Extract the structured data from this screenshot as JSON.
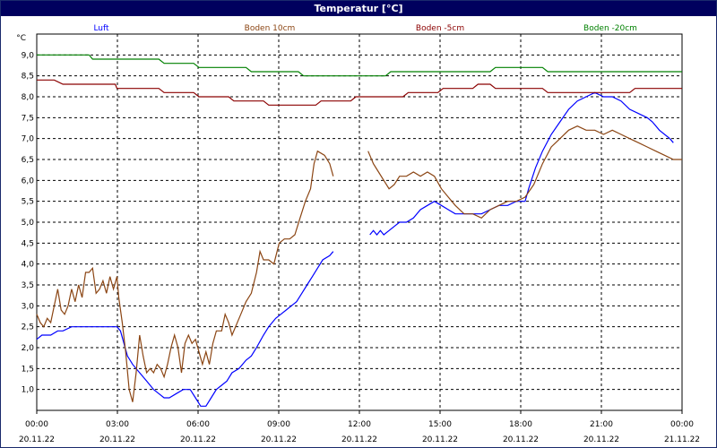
{
  "chart_data": {
    "type": "line",
    "title": "Temperatur [°C]",
    "ylabel": "°C",
    "ylim": [
      0.5,
      9.5
    ],
    "xlim_hours": [
      0,
      24
    ],
    "grid": true,
    "legend_position": "top",
    "y_ticks": [
      "1,0",
      "1,5",
      "2,0",
      "2,5",
      "3,0",
      "3,5",
      "4,0",
      "4,5",
      "5,0",
      "5,5",
      "6,0",
      "6,5",
      "7,0",
      "7,5",
      "8,0",
      "8,5",
      "9,0"
    ],
    "x_ticks": [
      {
        "time": "00:00",
        "date": "20.11.22"
      },
      {
        "time": "03:00",
        "date": "20.11.22"
      },
      {
        "time": "06:00",
        "date": "20.11.22"
      },
      {
        "time": "09:00",
        "date": "20.11.22"
      },
      {
        "time": "12:00",
        "date": "20.11.22"
      },
      {
        "time": "15:00",
        "date": "20.11.22"
      },
      {
        "time": "18:00",
        "date": "20.11.22"
      },
      {
        "time": "21:00",
        "date": "20.11.22"
      },
      {
        "time": "00:00",
        "date": "21.11.22"
      }
    ],
    "series": [
      {
        "name": "Luft",
        "color": "#0000ff",
        "segments": [
          [
            [
              0,
              2.2
            ],
            [
              0.3,
              2.3
            ],
            [
              0.8,
              2.3
            ],
            [
              1.2,
              2.4
            ],
            [
              1.5,
              2.4
            ],
            [
              2,
              2.5
            ],
            [
              3,
              2.5
            ],
            [
              4,
              2.5
            ],
            [
              4.6,
              2.5
            ],
            [
              4.8,
              2.4
            ],
            [
              5.0,
              2.1
            ],
            [
              5.2,
              1.8
            ],
            [
              5.5,
              1.6
            ],
            [
              5.9,
              1.4
            ],
            [
              6.3,
              1.2
            ],
            [
              6.7,
              1.0
            ],
            [
              7.0,
              0.9
            ],
            [
              7.3,
              0.8
            ],
            [
              7.6,
              0.8
            ],
            [
              8.0,
              0.9
            ],
            [
              8.4,
              1.0
            ],
            [
              8.8,
              1.0
            ],
            [
              9.1,
              0.8
            ],
            [
              9.4,
              0.6
            ],
            [
              9.7,
              0.6
            ],
            [
              10.0,
              0.8
            ],
            [
              10.3,
              1.0
            ],
            [
              10.6,
              1.1
            ],
            [
              10.9,
              1.2
            ],
            [
              11.2,
              1.4
            ],
            [
              11.6,
              1.5
            ],
            [
              12.0,
              1.7
            ],
            [
              12.3,
              1.8
            ],
            [
              12.6,
              2.0
            ],
            [
              13.0,
              2.3
            ],
            [
              13.3,
              2.5
            ],
            [
              13.7,
              2.7
            ],
            [
              14.0,
              2.8
            ],
            [
              14.3,
              2.9
            ],
            [
              14.6,
              3.0
            ],
            [
              14.9,
              3.1
            ],
            [
              15.2,
              3.3
            ],
            [
              15.5,
              3.5
            ],
            [
              15.8,
              3.7
            ],
            [
              16.1,
              3.9
            ],
            [
              16.4,
              4.1
            ],
            [
              16.8,
              4.2
            ],
            [
              17.0,
              4.3
            ]
          ],
          [
            [
              19.1,
              4.7
            ],
            [
              19.3,
              4.8
            ],
            [
              19.5,
              4.7
            ],
            [
              19.7,
              4.8
            ],
            [
              19.9,
              4.7
            ],
            [
              20.2,
              4.8
            ],
            [
              20.5,
              4.9
            ],
            [
              20.8,
              5.0
            ],
            [
              21.2,
              5.0
            ],
            [
              21.6,
              5.1
            ],
            [
              22.0,
              5.3
            ],
            [
              22.4,
              5.4
            ],
            [
              22.8,
              5.5
            ],
            [
              23.2,
              5.4
            ],
            [
              23.6,
              5.3
            ],
            [
              24,
              5.2
            ],
            [
              24.5,
              5.2
            ],
            [
              25,
              5.2
            ],
            [
              25.5,
              5.2
            ],
            [
              26,
              5.3
            ],
            [
              26.5,
              5.4
            ],
            [
              27,
              5.4
            ],
            [
              27.5,
              5.5
            ],
            [
              28,
              5.5
            ],
            [
              28.2,
              5.8
            ],
            [
              28.6,
              6.3
            ],
            [
              29.0,
              6.7
            ],
            [
              29.5,
              7.1
            ],
            [
              30,
              7.4
            ],
            [
              30.5,
              7.7
            ],
            [
              31,
              7.9
            ],
            [
              31.5,
              8.0
            ],
            [
              32,
              8.1
            ],
            [
              32.5,
              8.0
            ],
            [
              33,
              8.0
            ],
            [
              33.5,
              7.9
            ],
            [
              34,
              7.7
            ],
            [
              34.5,
              7.6
            ],
            [
              35,
              7.5
            ],
            [
              35.3,
              7.4
            ],
            [
              35.7,
              7.2
            ],
            [
              36,
              7.1
            ],
            [
              36.3,
              7.0
            ],
            [
              36.5,
              6.9
            ]
          ]
        ]
      },
      {
        "name": "Boden 10cm",
        "color": "#8b4513",
        "segments": [
          [
            [
              0,
              2.8
            ],
            [
              0.2,
              2.6
            ],
            [
              0.4,
              2.5
            ],
            [
              0.6,
              2.7
            ],
            [
              0.8,
              2.6
            ],
            [
              1.0,
              3.0
            ],
            [
              1.2,
              3.4
            ],
            [
              1.4,
              2.9
            ],
            [
              1.6,
              2.8
            ],
            [
              1.8,
              3.0
            ],
            [
              2.0,
              3.4
            ],
            [
              2.2,
              3.1
            ],
            [
              2.4,
              3.5
            ],
            [
              2.6,
              3.2
            ],
            [
              2.8,
              3.8
            ],
            [
              3.0,
              3.8
            ],
            [
              3.2,
              3.9
            ],
            [
              3.4,
              3.3
            ],
            [
              3.6,
              3.4
            ],
            [
              3.8,
              3.6
            ],
            [
              4.0,
              3.3
            ],
            [
              4.2,
              3.7
            ],
            [
              4.4,
              3.4
            ],
            [
              4.6,
              3.7
            ],
            [
              4.7,
              3.2
            ],
            [
              4.9,
              2.6
            ],
            [
              5.1,
              1.9
            ],
            [
              5.3,
              1.0
            ],
            [
              5.5,
              0.7
            ],
            [
              5.7,
              1.4
            ],
            [
              5.9,
              2.3
            ],
            [
              6.1,
              1.8
            ],
            [
              6.3,
              1.4
            ],
            [
              6.5,
              1.5
            ],
            [
              6.7,
              1.4
            ],
            [
              6.9,
              1.6
            ],
            [
              7.1,
              1.5
            ],
            [
              7.3,
              1.3
            ],
            [
              7.5,
              1.6
            ],
            [
              7.7,
              2.0
            ],
            [
              7.9,
              2.3
            ],
            [
              8.1,
              2.0
            ],
            [
              8.3,
              1.4
            ],
            [
              8.5,
              2.1
            ],
            [
              8.7,
              2.3
            ],
            [
              8.9,
              2.1
            ],
            [
              9.1,
              2.2
            ],
            [
              9.3,
              1.9
            ],
            [
              9.5,
              1.6
            ],
            [
              9.7,
              1.9
            ],
            [
              9.9,
              1.6
            ],
            [
              10.1,
              2.1
            ],
            [
              10.3,
              2.4
            ],
            [
              10.6,
              2.4
            ],
            [
              10.8,
              2.8
            ],
            [
              11.0,
              2.6
            ],
            [
              11.2,
              2.3
            ],
            [
              11.4,
              2.5
            ],
            [
              11.7,
              2.8
            ],
            [
              12.0,
              3.1
            ],
            [
              12.3,
              3.3
            ],
            [
              12.6,
              3.8
            ],
            [
              12.8,
              4.3
            ],
            [
              13.0,
              4.1
            ],
            [
              13.3,
              4.1
            ],
            [
              13.6,
              4.0
            ],
            [
              13.9,
              4.5
            ],
            [
              14.2,
              4.6
            ],
            [
              14.5,
              4.6
            ],
            [
              14.8,
              4.7
            ],
            [
              15.1,
              5.1
            ],
            [
              15.4,
              5.5
            ],
            [
              15.7,
              5.8
            ],
            [
              15.9,
              6.4
            ],
            [
              16.1,
              6.7
            ],
            [
              16.5,
              6.6
            ],
            [
              16.8,
              6.4
            ],
            [
              17.0,
              6.1
            ]
          ],
          [
            [
              19.0,
              6.7
            ],
            [
              19.3,
              6.4
            ],
            [
              19.6,
              6.2
            ],
            [
              19.9,
              6.0
            ],
            [
              20.2,
              5.8
            ],
            [
              20.5,
              5.9
            ],
            [
              20.8,
              6.1
            ],
            [
              21.2,
              6.1
            ],
            [
              21.6,
              6.2
            ],
            [
              22,
              6.1
            ],
            [
              22.4,
              6.2
            ],
            [
              22.8,
              6.1
            ],
            [
              23.2,
              5.8
            ],
            [
              23.6,
              5.6
            ],
            [
              24,
              5.4
            ],
            [
              24.5,
              5.2
            ],
            [
              25,
              5.2
            ],
            [
              25.5,
              5.1
            ],
            [
              26,
              5.3
            ],
            [
              26.5,
              5.4
            ],
            [
              27,
              5.5
            ],
            [
              27.5,
              5.5
            ],
            [
              28,
              5.6
            ],
            [
              28.5,
              5.9
            ],
            [
              29,
              6.4
            ],
            [
              29.5,
              6.8
            ],
            [
              30,
              7.0
            ],
            [
              30.5,
              7.2
            ],
            [
              31,
              7.3
            ],
            [
              31.5,
              7.2
            ],
            [
              32,
              7.2
            ],
            [
              32.5,
              7.1
            ],
            [
              33,
              7.2
            ],
            [
              33.5,
              7.1
            ],
            [
              34,
              7.0
            ],
            [
              34.5,
              6.9
            ],
            [
              35,
              6.8
            ],
            [
              35.5,
              6.7
            ],
            [
              36,
              6.6
            ],
            [
              36.5,
              6.5
            ],
            [
              37,
              6.5
            ]
          ]
        ]
      },
      {
        "name": "Boden -5cm",
        "color": "#8b0000",
        "segments": [
          [
            [
              0,
              8.4
            ],
            [
              1,
              8.4
            ],
            [
              1.5,
              8.3
            ],
            [
              3,
              8.3
            ],
            [
              4.5,
              8.3
            ],
            [
              4.6,
              8.2
            ],
            [
              6,
              8.2
            ],
            [
              7,
              8.2
            ],
            [
              7.3,
              8.1
            ],
            [
              9,
              8.1
            ],
            [
              9.3,
              8.0
            ],
            [
              11,
              8.0
            ],
            [
              11.3,
              7.9
            ],
            [
              13,
              7.9
            ],
            [
              13.3,
              7.8
            ],
            [
              15,
              7.8
            ],
            [
              16,
              7.8
            ],
            [
              16.3,
              7.9
            ],
            [
              18,
              7.9
            ],
            [
              18.3,
              8.0
            ],
            [
              21,
              8.0
            ],
            [
              21.3,
              8.1
            ],
            [
              23,
              8.1
            ],
            [
              23.3,
              8.2
            ],
            [
              25,
              8.2
            ],
            [
              25.3,
              8.3
            ],
            [
              26,
              8.3
            ],
            [
              26.3,
              8.2
            ],
            [
              29,
              8.2
            ],
            [
              29.3,
              8.1
            ],
            [
              34,
              8.1
            ],
            [
              34.3,
              8.2
            ],
            [
              37,
              8.2
            ]
          ]
        ]
      },
      {
        "name": "Boden -20cm",
        "color": "#008000",
        "segments": [
          [
            [
              0,
              9.0
            ],
            [
              2,
              9.0
            ],
            [
              3,
              9.0
            ],
            [
              3.2,
              8.9
            ],
            [
              7,
              8.9
            ],
            [
              7.3,
              8.8
            ],
            [
              9,
              8.8
            ],
            [
              9.3,
              8.7
            ],
            [
              12,
              8.7
            ],
            [
              12.3,
              8.6
            ],
            [
              15,
              8.6
            ],
            [
              15.3,
              8.5
            ],
            [
              20,
              8.5
            ],
            [
              20.3,
              8.6
            ],
            [
              24,
              8.6
            ],
            [
              24.3,
              8.6
            ],
            [
              26,
              8.6
            ],
            [
              26.3,
              8.7
            ],
            [
              29,
              8.7
            ],
            [
              29.3,
              8.6
            ],
            [
              37,
              8.6
            ]
          ]
        ]
      }
    ]
  }
}
